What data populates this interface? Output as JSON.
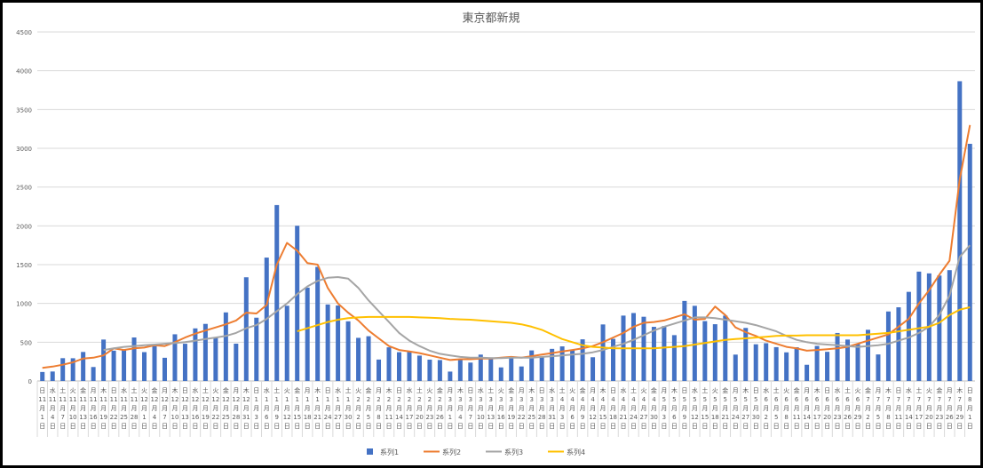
{
  "chart_data": {
    "type": "bar_line",
    "title": "東京都新規",
    "categories": [
      "日11月1日",
      "水11月4日",
      "土11月7日",
      "火11月10日",
      "金11月13日",
      "月11月16日",
      "木11月19日",
      "日11月22日",
      "水11月25日",
      "土11月28日",
      "火12月1日",
      "金12月4日",
      "月12月7日",
      "木12月10日",
      "日12月13日",
      "水12月16日",
      "土12月19日",
      "火12月22日",
      "金12月25日",
      "月12月28日",
      "木12月31日",
      "日1月3日",
      "水1月6日",
      "土1月9日",
      "火1月12日",
      "金1月15日",
      "月1月18日",
      "木1月21日",
      "日1月24日",
      "水1月27日",
      "土1月30日",
      "火2月2日",
      "金2月5日",
      "月2月8日",
      "木2月11日",
      "日2月14日",
      "水2月17日",
      "土2月20日",
      "火2月23日",
      "金2月26日",
      "月3月1日",
      "木3月4日",
      "日3月7日",
      "水3月10日",
      "土3月13日",
      "火3月16日",
      "金3月19日",
      "月3月22日",
      "木3月25日",
      "日3月28日",
      "水3月31日",
      "土4月3日",
      "火4月6日",
      "金4月9日",
      "月4月12日",
      "木4月15日",
      "日4月18日",
      "水4月21日",
      "土4月24日",
      "火4月27日",
      "金4月30日",
      "月5月3日",
      "木5月6日",
      "日5月9日",
      "水5月12日",
      "土5月15日",
      "火5月18日",
      "金5月21日",
      "月5月24日",
      "木5月27日",
      "日5月30日",
      "水6月2日",
      "土6月5日",
      "火6月8日",
      "金6月11日",
      "月6月14日",
      "木6月17日",
      "日6月20日",
      "水6月23日",
      "土6月26日",
      "火6月29日",
      "金7月2日",
      "月7月5日",
      "木7月8日",
      "日7月11日",
      "水7月14日",
      "土7月17日",
      "火7月20日",
      "金7月23日",
      "月7月26日",
      "木7月29日",
      "日8月1日"
    ],
    "series": [
      {
        "name": "系列1",
        "color": "#4472c4",
        "kind": "bar",
        "values": [
          116,
          122,
          294,
          293,
          374,
          180,
          534,
          391,
          401,
          561,
          372,
          449,
          299,
          602,
          480,
          678,
          736,
          563,
          884,
          481,
          1337,
          816,
          1591,
          2268,
          970,
          2001,
          1204,
          1471,
          986,
          973,
          769,
          556,
          577,
          276,
          434,
          371,
          378,
          327,
          275,
          270,
          121,
          279,
          237,
          340,
          304,
          175,
          303,
          187,
          394,
          313,
          414,
          446,
          399,
          537,
          306,
          729,
          543,
          843,
          876,
          828,
          698,
          708,
          591,
          1032,
          969,
          772,
          732,
          843,
          340,
          684,
          473,
          487,
          436,
          369,
          435,
          209,
          452,
          376,
          619,
          534,
          476,
          660,
          342,
          896,
          950,
          1149,
          1410,
          1387,
          1359,
          1429,
          3865,
          3058
        ]
      },
      {
        "name": "系列2",
        "color": "#ed7d31",
        "kind": "line",
        "values": [
          170,
          185,
          210,
          240,
          290,
          300,
          330,
          420,
          400,
          420,
          430,
          460,
          450,
          500,
          560,
          610,
          650,
          690,
          730,
          780,
          880,
          870,
          980,
          1500,
          1780,
          1680,
          1520,
          1500,
          1200,
          1000,
          880,
          780,
          650,
          550,
          450,
          400,
          380,
          360,
          330,
          300,
          270,
          280,
          280,
          290,
          290,
          300,
          310,
          300,
          320,
          340,
          360,
          380,
          400,
          420,
          450,
          500,
          560,
          620,
          700,
          750,
          760,
          780,
          820,
          860,
          790,
          800,
          960,
          850,
          690,
          630,
          580,
          520,
          480,
          440,
          420,
          390,
          400,
          410,
          420,
          440,
          480,
          520,
          560,
          600,
          700,
          800,
          1000,
          1170,
          1370,
          1550,
          2600,
          3300
        ]
      },
      {
        "name": "系列3",
        "color": "#a5a5a5",
        "kind": "line",
        "values": [
          null,
          null,
          null,
          null,
          null,
          null,
          400,
          420,
          440,
          450,
          460,
          470,
          480,
          490,
          500,
          520,
          540,
          560,
          580,
          620,
          680,
          720,
          800,
          900,
          1000,
          1120,
          1220,
          1290,
          1330,
          1340,
          1320,
          1200,
          1040,
          900,
          760,
          620,
          520,
          450,
          390,
          350,
          330,
          310,
          300,
          300,
          295,
          295,
          300,
          300,
          300,
          310,
          320,
          330,
          340,
          350,
          370,
          400,
          440,
          480,
          530,
          590,
          650,
          700,
          740,
          780,
          820,
          820,
          810,
          790,
          770,
          750,
          720,
          680,
          640,
          580,
          530,
          500,
          480,
          470,
          460,
          450,
          440,
          450,
          460,
          480,
          520,
          560,
          620,
          700,
          850,
          1100,
          1600,
          1750
        ]
      },
      {
        "name": "系列4",
        "color": "#ffc000",
        "kind": "line",
        "values": [
          null,
          null,
          null,
          null,
          null,
          null,
          null,
          null,
          null,
          null,
          null,
          null,
          null,
          null,
          null,
          null,
          null,
          null,
          null,
          null,
          null,
          null,
          null,
          null,
          null,
          640,
          680,
          720,
          760,
          790,
          810,
          820,
          825,
          825,
          825,
          825,
          825,
          820,
          815,
          810,
          800,
          795,
          790,
          780,
          770,
          760,
          750,
          730,
          700,
          660,
          600,
          540,
          500,
          460,
          440,
          430,
          420,
          420,
          420,
          420,
          420,
          430,
          440,
          450,
          470,
          490,
          510,
          530,
          540,
          550,
          560,
          570,
          580,
          585,
          585,
          590,
          590,
          590,
          590,
          590,
          590,
          600,
          610,
          620,
          640,
          660,
          680,
          700,
          750,
          850,
          920,
          950
        ]
      }
    ],
    "ylim": [
      0,
      4500
    ],
    "yticks": [
      0,
      500,
      1000,
      1500,
      2000,
      2500,
      3000,
      3500,
      4000,
      4500
    ],
    "grid": true,
    "legend": "bottom"
  }
}
